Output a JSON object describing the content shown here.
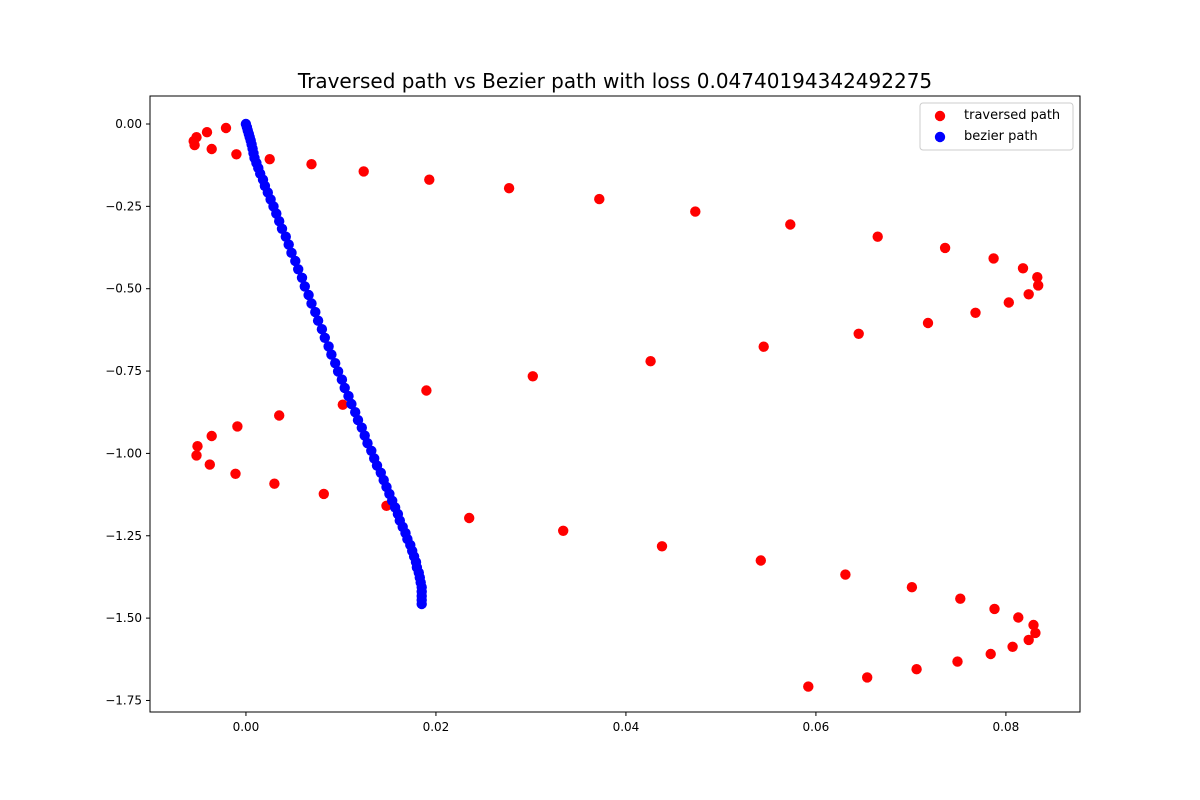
{
  "chart_data": {
    "type": "scatter",
    "title": "Traversed path vs Bezier path with loss 0.04740194342492275",
    "xlabel": "",
    "ylabel": "",
    "xlim": [
      -0.0101,
      0.0878
    ],
    "ylim": [
      -1.785,
      0.085
    ],
    "xticks": [
      0.0,
      0.02,
      0.04,
      0.06,
      0.08
    ],
    "xtick_labels": [
      "0.00",
      "0.02",
      "0.04",
      "0.06",
      "0.08"
    ],
    "yticks": [
      0.0,
      -0.25,
      -0.5,
      -0.75,
      -1.0,
      -1.25,
      -1.5,
      -1.75
    ],
    "ytick_labels": [
      "0.00",
      "−0.25",
      "−0.50",
      "−0.75",
      "−1.00",
      "−1.25",
      "−1.50",
      "−1.75"
    ],
    "grid": false,
    "legend_position": "top-right",
    "series": [
      {
        "name": "traversed path",
        "color": "#ff0000",
        "points": [
          [
            -0.0021,
            -0.012
          ],
          [
            -0.0041,
            -0.025
          ],
          [
            -0.0052,
            -0.04
          ],
          [
            -0.0055,
            -0.052
          ],
          [
            -0.0054,
            -0.064
          ],
          [
            -0.0036,
            -0.076
          ],
          [
            -0.001,
            -0.092
          ],
          [
            0.0025,
            -0.107
          ],
          [
            0.0069,
            -0.122
          ],
          [
            0.0124,
            -0.144
          ],
          [
            0.0193,
            -0.169
          ],
          [
            0.0277,
            -0.195
          ],
          [
            0.0372,
            -0.228
          ],
          [
            0.0473,
            -0.266
          ],
          [
            0.0573,
            -0.305
          ],
          [
            0.0665,
            -0.342
          ],
          [
            0.0736,
            -0.376
          ],
          [
            0.0787,
            -0.408
          ],
          [
            0.0818,
            -0.438
          ],
          [
            0.0833,
            -0.465
          ],
          [
            0.0834,
            -0.49
          ],
          [
            0.0824,
            -0.517
          ],
          [
            0.0803,
            -0.542
          ],
          [
            0.0768,
            -0.573
          ],
          [
            0.0718,
            -0.604
          ],
          [
            0.0645,
            -0.637
          ],
          [
            0.0545,
            -0.676
          ],
          [
            0.0426,
            -0.72
          ],
          [
            0.0302,
            -0.766
          ],
          [
            0.019,
            -0.809
          ],
          [
            0.0102,
            -0.852
          ],
          [
            0.0035,
            -0.885
          ],
          [
            -0.0009,
            -0.918
          ],
          [
            -0.0036,
            -0.947
          ],
          [
            -0.0051,
            -0.978
          ],
          [
            -0.0052,
            -1.006
          ],
          [
            -0.0038,
            -1.034
          ],
          [
            -0.0011,
            -1.062
          ],
          [
            0.003,
            -1.092
          ],
          [
            0.0082,
            -1.123
          ],
          [
            0.0148,
            -1.159
          ],
          [
            0.0235,
            -1.196
          ],
          [
            0.0334,
            -1.235
          ],
          [
            0.0438,
            -1.282
          ],
          [
            0.0542,
            -1.325
          ],
          [
            0.0631,
            -1.368
          ],
          [
            0.0701,
            -1.406
          ],
          [
            0.0752,
            -1.441
          ],
          [
            0.0788,
            -1.472
          ],
          [
            0.0813,
            -1.498
          ],
          [
            0.0829,
            -1.521
          ],
          [
            0.0831,
            -1.545
          ],
          [
            0.0824,
            -1.566
          ],
          [
            0.0807,
            -1.587
          ],
          [
            0.0784,
            -1.609
          ],
          [
            0.0749,
            -1.632
          ],
          [
            0.0706,
            -1.655
          ],
          [
            0.0654,
            -1.68
          ],
          [
            0.0592,
            -1.708
          ]
        ]
      },
      {
        "name": "bezier path",
        "color": "#0000ff",
        "points": [
          [
            0.0,
            0.0
          ],
          [
            0.0001,
            -0.01
          ],
          [
            0.0002,
            -0.02
          ],
          [
            0.0003,
            -0.03
          ],
          [
            0.0004,
            -0.04
          ],
          [
            0.0005,
            -0.05
          ],
          [
            0.0006,
            -0.062
          ],
          [
            0.0007,
            -0.075
          ],
          [
            0.0008,
            -0.089
          ],
          [
            0.0009,
            -0.103
          ],
          [
            0.0011,
            -0.118
          ],
          [
            0.0013,
            -0.134
          ],
          [
            0.0015,
            -0.151
          ],
          [
            0.0018,
            -0.169
          ],
          [
            0.002,
            -0.188
          ],
          [
            0.0023,
            -0.208
          ],
          [
            0.0026,
            -0.229
          ],
          [
            0.0029,
            -0.25
          ],
          [
            0.0032,
            -0.272
          ],
          [
            0.0035,
            -0.295
          ],
          [
            0.0038,
            -0.318
          ],
          [
            0.0042,
            -0.342
          ],
          [
            0.0045,
            -0.366
          ],
          [
            0.0048,
            -0.391
          ],
          [
            0.0052,
            -0.416
          ],
          [
            0.0055,
            -0.441
          ],
          [
            0.0059,
            -0.467
          ],
          [
            0.0062,
            -0.493
          ],
          [
            0.0066,
            -0.519
          ],
          [
            0.0069,
            -0.545
          ],
          [
            0.0073,
            -0.571
          ],
          [
            0.0076,
            -0.597
          ],
          [
            0.008,
            -0.623
          ],
          [
            0.0083,
            -0.649
          ],
          [
            0.0087,
            -0.675
          ],
          [
            0.009,
            -0.7
          ],
          [
            0.0094,
            -0.726
          ],
          [
            0.0097,
            -0.751
          ],
          [
            0.0101,
            -0.776
          ],
          [
            0.0104,
            -0.801
          ],
          [
            0.0108,
            -0.826
          ],
          [
            0.0111,
            -0.85
          ],
          [
            0.0115,
            -0.875
          ],
          [
            0.0118,
            -0.899
          ],
          [
            0.0122,
            -0.922
          ],
          [
            0.0125,
            -0.946
          ],
          [
            0.0128,
            -0.969
          ],
          [
            0.0132,
            -0.992
          ],
          [
            0.0135,
            -1.015
          ],
          [
            0.0138,
            -1.037
          ],
          [
            0.0142,
            -1.059
          ],
          [
            0.0145,
            -1.081
          ],
          [
            0.0148,
            -1.102
          ],
          [
            0.0151,
            -1.123
          ],
          [
            0.0154,
            -1.144
          ],
          [
            0.0157,
            -1.164
          ],
          [
            0.016,
            -1.184
          ],
          [
            0.0162,
            -1.204
          ],
          [
            0.0165,
            -1.223
          ],
          [
            0.0168,
            -1.242
          ],
          [
            0.017,
            -1.26
          ],
          [
            0.0173,
            -1.278
          ],
          [
            0.0175,
            -1.296
          ],
          [
            0.0177,
            -1.313
          ],
          [
            0.0179,
            -1.33
          ],
          [
            0.018,
            -1.346
          ],
          [
            0.0182,
            -1.362
          ],
          [
            0.0183,
            -1.377
          ],
          [
            0.0184,
            -1.392
          ],
          [
            0.0185,
            -1.406
          ],
          [
            0.0185,
            -1.42
          ],
          [
            0.0185,
            -1.433
          ],
          [
            0.0185,
            -1.445
          ],
          [
            0.0185,
            -1.457
          ]
        ]
      }
    ]
  }
}
